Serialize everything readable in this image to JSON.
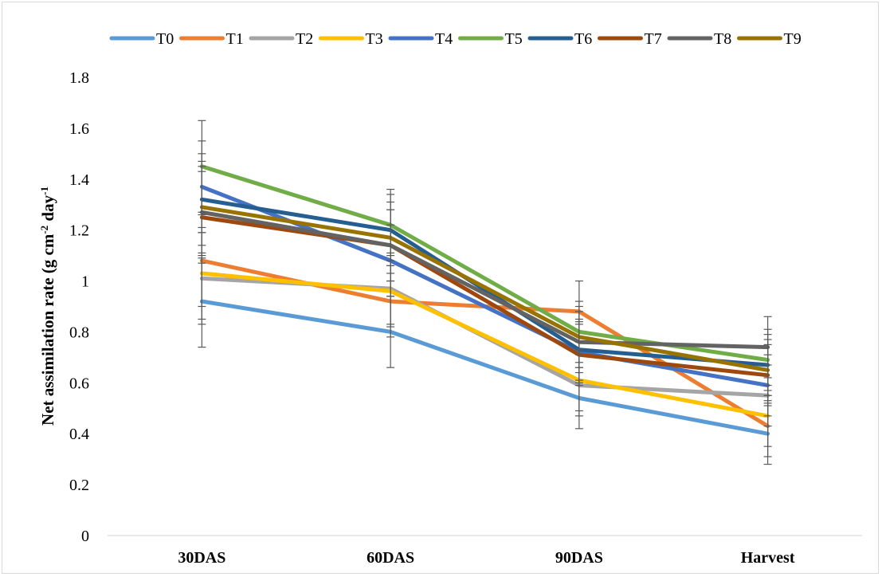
{
  "chart_data": {
    "type": "line",
    "ylabel": "Net assimilation rate (g cm",
    "ylabel_sup1": "-2",
    "ylabel_mid": " day",
    "ylabel_sup2": "-1",
    "xlabel": "",
    "categories": [
      "30DAS",
      "60DAS",
      "90DAS",
      "Harvest"
    ],
    "ylim": [
      0,
      1.8
    ],
    "yticks": [
      "0",
      "0.2",
      "0.4",
      "0.6",
      "0.8",
      "1",
      "1.2",
      "1.4",
      "1.6",
      "1.8"
    ],
    "legend_position": "top",
    "grid": false,
    "error_bars": true,
    "series": [
      {
        "name": "T0",
        "color": "#5B9BD5",
        "values": [
          0.92,
          0.8,
          0.54,
          0.4
        ]
      },
      {
        "name": "T1",
        "color": "#ED7D31",
        "values": [
          1.08,
          0.92,
          0.88,
          0.43
        ]
      },
      {
        "name": "T2",
        "color": "#A5A5A5",
        "values": [
          1.01,
          0.97,
          0.59,
          0.55
        ]
      },
      {
        "name": "T3",
        "color": "#FFC000",
        "values": [
          1.03,
          0.96,
          0.61,
          0.47
        ]
      },
      {
        "name": "T4",
        "color": "#4472C4",
        "values": [
          1.37,
          1.08,
          0.72,
          0.59
        ]
      },
      {
        "name": "T5",
        "color": "#70AD47",
        "values": [
          1.45,
          1.22,
          0.8,
          0.69
        ]
      },
      {
        "name": "T6",
        "color": "#255E91",
        "values": [
          1.32,
          1.2,
          0.73,
          0.67
        ]
      },
      {
        "name": "T7",
        "color": "#9E480E",
        "values": [
          1.25,
          1.14,
          0.71,
          0.63
        ]
      },
      {
        "name": "T8",
        "color": "#636363",
        "values": [
          1.27,
          1.14,
          0.76,
          0.74
        ]
      },
      {
        "name": "T9",
        "color": "#997300",
        "values": [
          1.29,
          1.17,
          0.78,
          0.65
        ]
      }
    ],
    "error": [
      0.18,
      0.14,
      0.12,
      0.12
    ]
  }
}
